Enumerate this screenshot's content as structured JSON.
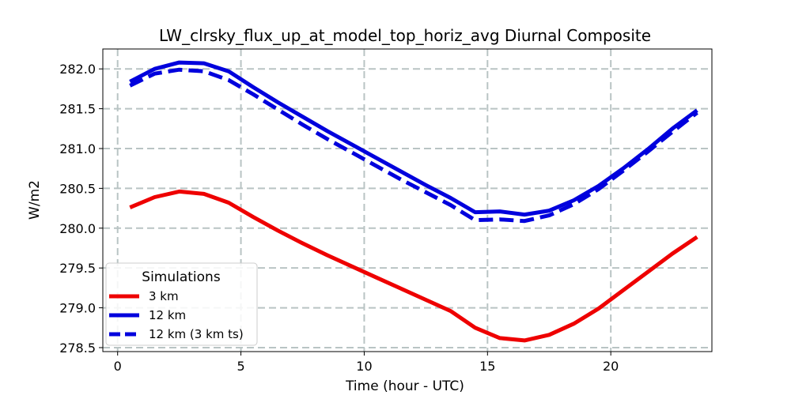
{
  "chart_data": {
    "type": "line",
    "title": "LW_clrsky_flux_up_at_model_top_horiz_avg Diurnal Composite",
    "xlabel": "Time (hour - UTC)",
    "ylabel": "W/m2",
    "xlim": [
      -0.6,
      24.1
    ],
    "ylim": [
      278.45,
      282.25
    ],
    "xticks": [
      0,
      5,
      10,
      15,
      20
    ],
    "yticks": [
      278.5,
      279.0,
      279.5,
      280.0,
      280.5,
      281.0,
      281.5,
      282.0
    ],
    "ytick_labels": [
      "278.5",
      "279.0",
      "279.5",
      "280.0",
      "280.5",
      "281.0",
      "281.5",
      "282.0"
    ],
    "grid": true,
    "legend": {
      "title": "Simulations",
      "placement": "lower-left"
    },
    "x": [
      0.5,
      1.5,
      2.5,
      3.5,
      4.5,
      5.5,
      6.5,
      7.5,
      8.5,
      9.5,
      10.5,
      11.5,
      12.5,
      13.5,
      14.5,
      15.5,
      16.5,
      17.5,
      18.5,
      19.5,
      20.5,
      21.5,
      22.5,
      23.5
    ],
    "series": [
      {
        "name": "3 km",
        "color": "#ee0000",
        "style": "solid",
        "values": [
          280.26,
          280.39,
          280.46,
          280.43,
          280.32,
          280.14,
          279.97,
          279.81,
          279.66,
          279.52,
          279.38,
          279.24,
          279.1,
          278.96,
          278.75,
          278.62,
          278.59,
          278.66,
          278.8,
          278.99,
          279.22,
          279.45,
          279.68,
          279.89
        ]
      },
      {
        "name": "12 km",
        "color": "#0000dd",
        "style": "solid",
        "values": [
          281.84,
          282.0,
          282.08,
          282.07,
          281.97,
          281.77,
          281.58,
          281.4,
          281.22,
          281.05,
          280.88,
          280.71,
          280.54,
          280.38,
          280.2,
          280.21,
          280.17,
          280.22,
          280.35,
          280.53,
          280.75,
          280.99,
          281.25,
          281.48
        ]
      },
      {
        "name": "12 km (3 km ts)",
        "color": "#0000dd",
        "style": "dashed",
        "values": [
          281.79,
          281.94,
          281.99,
          281.97,
          281.86,
          281.68,
          281.49,
          281.3,
          281.12,
          280.95,
          280.78,
          280.61,
          280.45,
          280.29,
          280.1,
          280.11,
          280.09,
          280.16,
          280.3,
          280.49,
          280.72,
          280.96,
          281.21,
          281.45
        ]
      }
    ]
  }
}
